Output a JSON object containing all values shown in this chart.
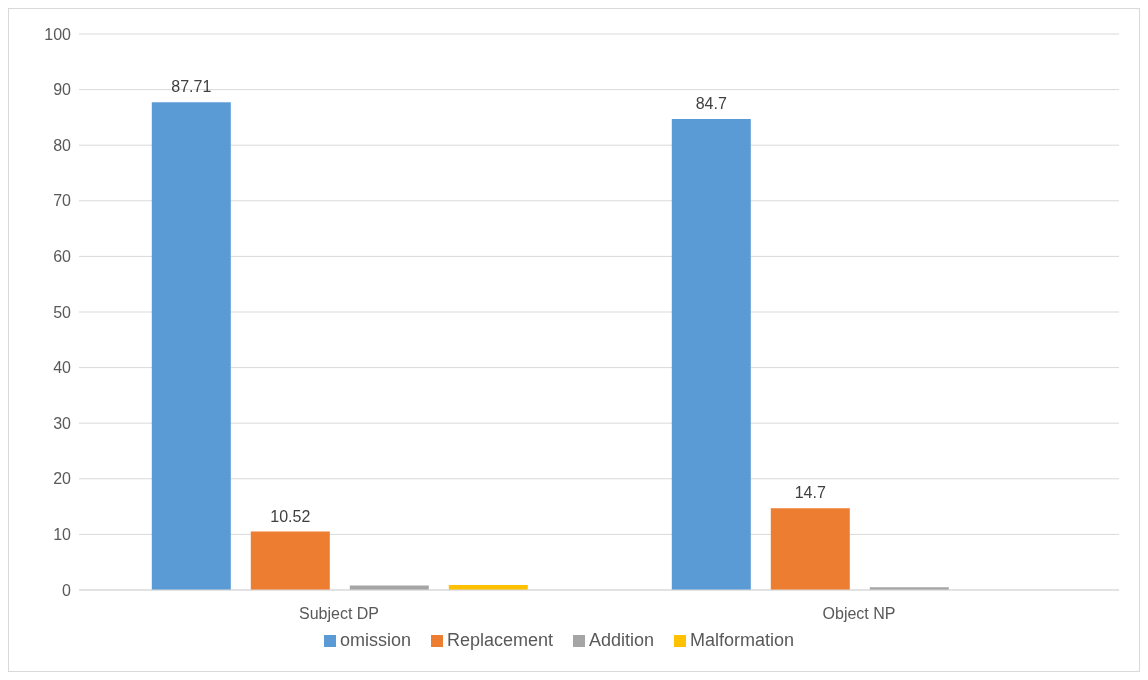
{
  "chart_data": {
    "type": "bar",
    "categories": [
      "Subject DP",
      "Object NP"
    ],
    "series": [
      {
        "name": "omission",
        "color": "#5b9bd5",
        "values": [
          87.71,
          84.7
        ],
        "value_labels": [
          "87.71",
          "84.7"
        ]
      },
      {
        "name": "Replacement",
        "color": "#ed7d31",
        "values": [
          10.52,
          14.7
        ],
        "value_labels": [
          "10.52",
          "14.7"
        ]
      },
      {
        "name": "Addition",
        "color": "#a5a5a5",
        "values": [
          0.8,
          0.5
        ]
      },
      {
        "name": "Malformation",
        "color": "#ffc000",
        "values": [
          0.9,
          null
        ]
      }
    ],
    "ylim": [
      0,
      100
    ],
    "yticks": [
      0,
      10,
      20,
      30,
      40,
      50,
      60,
      70,
      80,
      90,
      100
    ],
    "grid": "y",
    "legend": "bottom"
  }
}
